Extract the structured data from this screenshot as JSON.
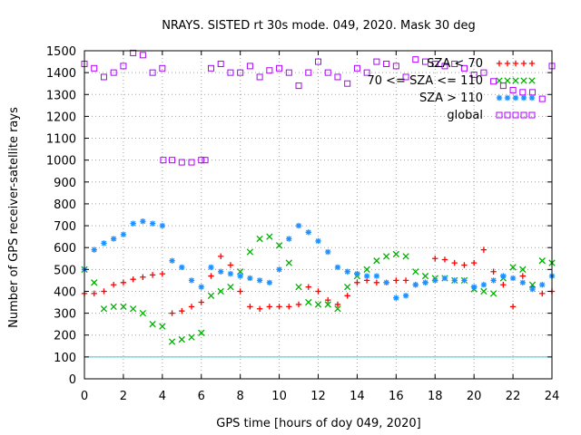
{
  "chart_data": {
    "type": "scatter",
    "title": "NRAYS. SISTED rt 30s mode. 049, 2020. Mask 30 deg",
    "xlabel": "GPS time [hours of doy 049, 2020]",
    "ylabel": "Number of GPS receiver-satellite rays",
    "xlim": [
      0,
      24
    ],
    "ylim": [
      0,
      1500
    ],
    "xticks": [
      "0",
      "2",
      "4",
      "6",
      "8",
      "10",
      "12",
      "14",
      "16",
      "18",
      "20",
      "22",
      "24"
    ],
    "yticks": [
      "0",
      "100",
      "200",
      "300",
      "400",
      "500",
      "600",
      "700",
      "800",
      "900",
      "1000",
      "1100",
      "1200",
      "1300",
      "1400",
      "1500"
    ],
    "grid": true,
    "legend_position": "top-right",
    "reference_line": {
      "name": "threshold",
      "y": 100,
      "color": "#33cccc"
    },
    "series": [
      {
        "name": "SZA < 70",
        "marker": "+",
        "color": "#ff0000",
        "x": [
          0,
          0.5,
          1,
          1.5,
          2,
          2.5,
          3,
          3.5,
          4,
          4.5,
          5,
          5.5,
          6,
          6.5,
          7,
          7.5,
          8,
          8.5,
          9,
          9.5,
          10,
          10.5,
          11,
          11.5,
          12,
          12.5,
          13,
          13.5,
          14,
          14.5,
          15,
          15.5,
          16,
          16.5,
          17,
          17.5,
          18,
          18.5,
          19,
          19.5,
          20,
          20.5,
          21,
          21.5,
          22,
          22.5,
          23,
          23.5,
          24
        ],
        "y": [
          390,
          390,
          400,
          430,
          440,
          455,
          465,
          475,
          480,
          300,
          310,
          330,
          350,
          470,
          560,
          520,
          400,
          330,
          320,
          330,
          330,
          330,
          340,
          420,
          400,
          360,
          340,
          380,
          440,
          450,
          440,
          440,
          450,
          450,
          430,
          440,
          550,
          545,
          530,
          520,
          530,
          590,
          490,
          430,
          330,
          470,
          420,
          390,
          400
        ]
      },
      {
        "name": "70 <= SZA <= 110",
        "marker": "x",
        "color": "#00b000",
        "x": [
          0,
          0.5,
          1,
          1.5,
          2,
          2.5,
          3,
          3.5,
          4,
          4.5,
          5,
          5.5,
          6,
          6.5,
          7,
          7.5,
          8,
          8.5,
          9,
          9.5,
          10,
          10.5,
          11,
          11.5,
          12,
          12.5,
          13,
          13.5,
          14,
          14.5,
          15,
          15.5,
          16,
          16.5,
          17,
          17.5,
          18,
          18.5,
          19,
          19.5,
          20,
          20.5,
          21,
          21.5,
          22,
          22.5,
          23,
          23.5,
          24
        ],
        "y": [
          500,
          440,
          320,
          330,
          330,
          320,
          300,
          250,
          240,
          170,
          180,
          190,
          210,
          380,
          400,
          420,
          490,
          580,
          640,
          650,
          610,
          530,
          420,
          350,
          340,
          340,
          320,
          420,
          470,
          500,
          540,
          560,
          570,
          560,
          490,
          470,
          460,
          460,
          450,
          450,
          410,
          400,
          390,
          460,
          510,
          500,
          430,
          540,
          530
        ]
      },
      {
        "name": "SZA > 110",
        "marker": "*",
        "color": "#1e90ff",
        "x": [
          0,
          0.5,
          1,
          1.5,
          2,
          2.5,
          3,
          3.5,
          4,
          4.5,
          5,
          5.5,
          6,
          6.5,
          7,
          7.5,
          8,
          8.5,
          9,
          9.5,
          10,
          10.5,
          11,
          11.5,
          12,
          12.5,
          13,
          13.5,
          14,
          14.5,
          15,
          15.5,
          16,
          16.5,
          17,
          17.5,
          18,
          18.5,
          19,
          19.5,
          20,
          20.5,
          21,
          21.5,
          22,
          22.5,
          23,
          23.5,
          24
        ],
        "y": [
          500,
          590,
          620,
          640,
          660,
          710,
          720,
          710,
          700,
          540,
          510,
          450,
          420,
          510,
          490,
          480,
          470,
          460,
          450,
          440,
          500,
          640,
          700,
          670,
          630,
          580,
          510,
          490,
          480,
          470,
          470,
          440,
          370,
          380,
          430,
          440,
          450,
          460,
          450,
          450,
          420,
          430,
          450,
          470,
          460,
          440,
          410,
          430,
          470
        ]
      },
      {
        "name": "global",
        "marker": "square",
        "color": "#b000ff",
        "x": [
          0,
          0.5,
          1,
          1.5,
          2,
          2.5,
          3,
          3.5,
          4,
          4.05,
          4.5,
          5,
          5.5,
          6,
          6.2,
          6.5,
          7,
          7.5,
          8,
          8.5,
          9,
          9.5,
          10,
          10.5,
          11,
          11.5,
          12,
          12.5,
          13,
          13.5,
          14,
          14.5,
          15,
          15.5,
          16,
          16.5,
          17,
          17.5,
          18,
          18.5,
          19,
          19.5,
          20,
          20.5,
          21,
          21.5,
          22,
          22.5,
          23,
          23.5,
          24
        ],
        "y": [
          1440,
          1420,
          1380,
          1400,
          1430,
          1490,
          1480,
          1400,
          1420,
          1000,
          1000,
          990,
          990,
          1000,
          1000,
          1420,
          1440,
          1400,
          1400,
          1430,
          1380,
          1410,
          1420,
          1400,
          1340,
          1400,
          1450,
          1400,
          1380,
          1350,
          1420,
          1400,
          1450,
          1440,
          1430,
          1380,
          1460,
          1450,
          1440,
          1430,
          1440,
          1420,
          1390,
          1400,
          1360,
          1340,
          1320,
          1310,
          1310,
          1280,
          1430
        ]
      }
    ]
  }
}
